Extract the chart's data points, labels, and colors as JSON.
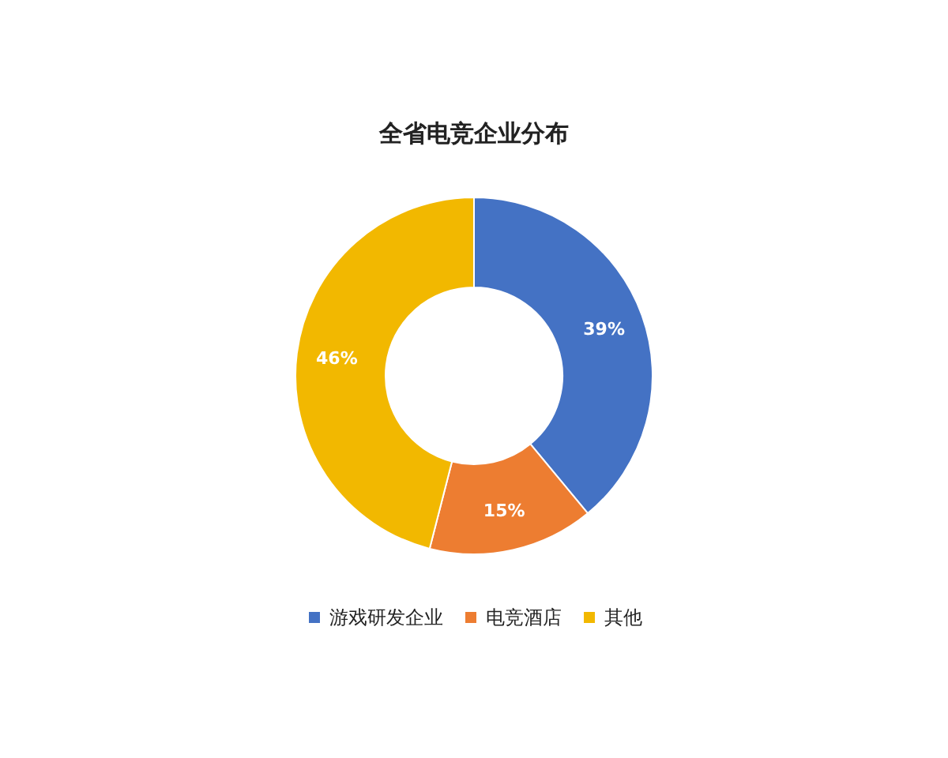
{
  "chart_data": {
    "type": "donut",
    "title": "全省电竞企业分布",
    "categories": [
      "游戏研发企业",
      "电竞酒店",
      "其他"
    ],
    "values": [
      39,
      15,
      46
    ],
    "value_labels": [
      "39%",
      "15%",
      "46%"
    ],
    "colors": [
      "#4472c4",
      "#ed7d31",
      "#f2b800"
    ],
    "legend": "bottom"
  }
}
